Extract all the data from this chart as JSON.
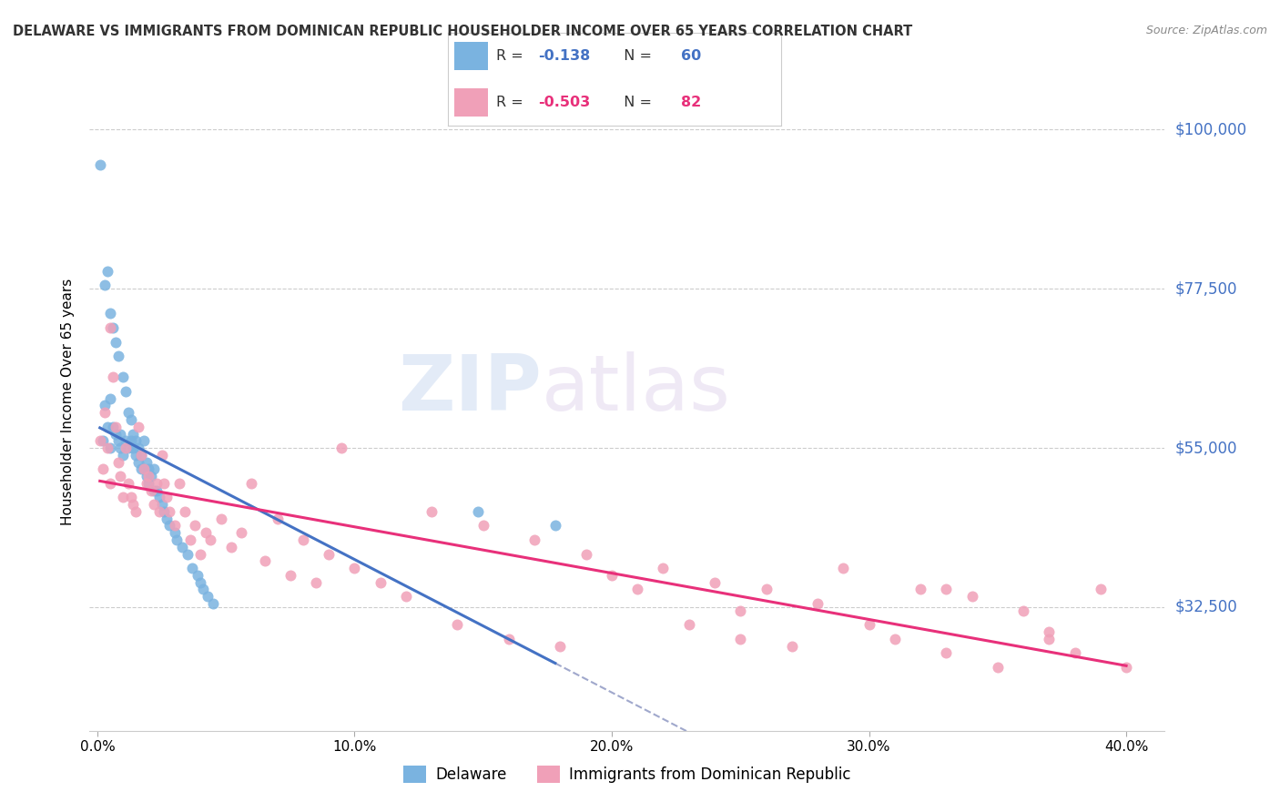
{
  "title": "DELAWARE VS IMMIGRANTS FROM DOMINICAN REPUBLIC HOUSEHOLDER INCOME OVER 65 YEARS CORRELATION CHART",
  "source": "Source: ZipAtlas.com",
  "ylabel": "Householder Income Over 65 years",
  "ytick_labels": [
    "$32,500",
    "$55,000",
    "$77,500",
    "$100,000"
  ],
  "ytick_vals": [
    32500,
    55000,
    77500,
    100000
  ],
  "ylim": [
    15000,
    108000
  ],
  "xlim": [
    -0.003,
    0.415
  ],
  "xlabel_ticks": [
    "0.0%",
    "10.0%",
    "20.0%",
    "30.0%",
    "40.0%"
  ],
  "xlabel_tick_vals": [
    0.0,
    0.1,
    0.2,
    0.3,
    0.4
  ],
  "R1": -0.138,
  "N1": 60,
  "R2": -0.503,
  "N2": 82,
  "color_delaware": "#7ab3e0",
  "color_dr": "#f0a0b8",
  "color_line_delaware": "#4472c4",
  "color_line_dr": "#e8307a",
  "color_dashed": "#a0a8cc",
  "watermark_zip": "ZIP",
  "watermark_atlas": "atlas",
  "title_color": "#333333",
  "axis_label_color": "#4472c4",
  "del_label": "Delaware",
  "dr_label": "Immigrants from Dominican Republic",
  "delaware_x": [
    0.001,
    0.002,
    0.003,
    0.003,
    0.004,
    0.004,
    0.005,
    0.005,
    0.005,
    0.006,
    0.006,
    0.007,
    0.007,
    0.008,
    0.008,
    0.009,
    0.009,
    0.01,
    0.01,
    0.011,
    0.011,
    0.012,
    0.012,
    0.013,
    0.013,
    0.014,
    0.014,
    0.015,
    0.015,
    0.016,
    0.016,
    0.017,
    0.017,
    0.018,
    0.018,
    0.019,
    0.019,
    0.02,
    0.02,
    0.021,
    0.022,
    0.022,
    0.023,
    0.024,
    0.025,
    0.026,
    0.027,
    0.028,
    0.03,
    0.031,
    0.033,
    0.035,
    0.037,
    0.039,
    0.04,
    0.041,
    0.043,
    0.045,
    0.148,
    0.178
  ],
  "delaware_y": [
    95000,
    56000,
    61000,
    78000,
    58000,
    80000,
    55000,
    62000,
    74000,
    58000,
    72000,
    57000,
    70000,
    56000,
    68000,
    55000,
    57000,
    54000,
    65000,
    56000,
    63000,
    55000,
    60000,
    56000,
    59000,
    55000,
    57000,
    54000,
    56000,
    53000,
    55000,
    52000,
    54000,
    52000,
    56000,
    51000,
    53000,
    50000,
    52000,
    51000,
    49000,
    52000,
    49000,
    48000,
    47000,
    46000,
    45000,
    44000,
    43000,
    42000,
    41000,
    40000,
    38000,
    37000,
    36000,
    35000,
    34000,
    33000,
    46000,
    44000
  ],
  "dr_x": [
    0.001,
    0.002,
    0.003,
    0.004,
    0.005,
    0.005,
    0.006,
    0.007,
    0.008,
    0.009,
    0.01,
    0.011,
    0.012,
    0.013,
    0.014,
    0.015,
    0.016,
    0.017,
    0.018,
    0.019,
    0.02,
    0.021,
    0.022,
    0.023,
    0.024,
    0.025,
    0.026,
    0.027,
    0.028,
    0.03,
    0.032,
    0.034,
    0.036,
    0.038,
    0.04,
    0.042,
    0.044,
    0.048,
    0.052,
    0.056,
    0.06,
    0.065,
    0.07,
    0.075,
    0.08,
    0.085,
    0.09,
    0.095,
    0.1,
    0.11,
    0.12,
    0.13,
    0.14,
    0.15,
    0.16,
    0.17,
    0.18,
    0.19,
    0.2,
    0.21,
    0.22,
    0.23,
    0.24,
    0.25,
    0.26,
    0.27,
    0.28,
    0.29,
    0.3,
    0.31,
    0.32,
    0.33,
    0.34,
    0.35,
    0.36,
    0.37,
    0.38,
    0.39,
    0.4,
    0.25,
    0.33,
    0.37
  ],
  "dr_y": [
    56000,
    52000,
    60000,
    55000,
    72000,
    50000,
    65000,
    58000,
    53000,
    51000,
    48000,
    55000,
    50000,
    48000,
    47000,
    46000,
    58000,
    54000,
    52000,
    50000,
    51000,
    49000,
    47000,
    50000,
    46000,
    54000,
    50000,
    48000,
    46000,
    44000,
    50000,
    46000,
    42000,
    44000,
    40000,
    43000,
    42000,
    45000,
    41000,
    43000,
    50000,
    39000,
    45000,
    37000,
    42000,
    36000,
    40000,
    55000,
    38000,
    36000,
    34000,
    46000,
    30000,
    44000,
    28000,
    42000,
    27000,
    40000,
    37000,
    35000,
    38000,
    30000,
    36000,
    28000,
    35000,
    27000,
    33000,
    38000,
    30000,
    28000,
    35000,
    26000,
    34000,
    24000,
    32000,
    29000,
    26000,
    35000,
    24000,
    32000,
    35000,
    28000
  ]
}
